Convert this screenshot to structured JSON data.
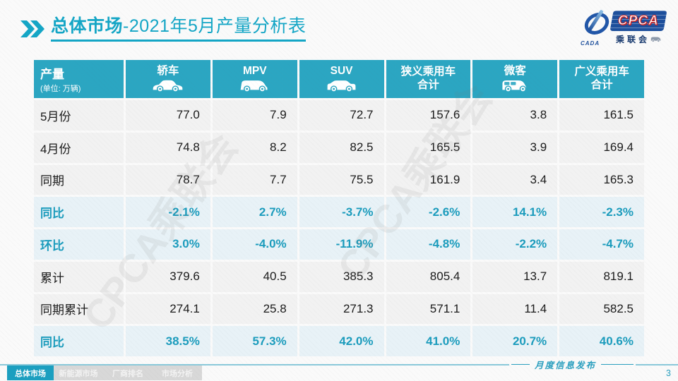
{
  "title": {
    "bold": "总体市场",
    "rest": "-2021年5月产量分析表"
  },
  "logo": {
    "cpca": "CPCA",
    "cada": "CADA",
    "sub": "乘联会"
  },
  "table": {
    "header": {
      "col0_title": "产量",
      "col0_sub": "(单位: 万辆)",
      "columns": [
        {
          "label": "轿车",
          "icon": "sedan-icon"
        },
        {
          "label": "MPV",
          "icon": "mpv-icon"
        },
        {
          "label": "SUV",
          "icon": "suv-icon"
        },
        {
          "label": "狭义乘用车",
          "label2": "合计"
        },
        {
          "label": "微客",
          "icon": "microvan-icon"
        },
        {
          "label": "广义乘用车",
          "label2": "合计"
        }
      ]
    },
    "rows": [
      {
        "label": "5月份",
        "type": "number",
        "values": [
          "77.0",
          "7.9",
          "72.7",
          "157.6",
          "3.8",
          "161.5"
        ]
      },
      {
        "label": "4月份",
        "type": "number",
        "values": [
          "74.8",
          "8.2",
          "82.5",
          "165.5",
          "3.9",
          "169.4"
        ]
      },
      {
        "label": "同期",
        "type": "number",
        "values": [
          "78.7",
          "7.7",
          "75.5",
          "161.9",
          "3.4",
          "165.3"
        ]
      },
      {
        "label": "同比",
        "type": "percent",
        "values": [
          "-2.1%",
          "2.7%",
          "-3.7%",
          "-2.6%",
          "14.1%",
          "-2.3%"
        ]
      },
      {
        "label": "环比",
        "type": "percent",
        "values": [
          "3.0%",
          "-4.0%",
          "-11.9%",
          "-4.8%",
          "-2.2%",
          "-4.7%"
        ]
      },
      {
        "label": "累计",
        "type": "number",
        "values": [
          "379.6",
          "40.5",
          "385.3",
          "805.4",
          "13.7",
          "819.1"
        ]
      },
      {
        "label": "同期累计",
        "type": "number",
        "values": [
          "274.1",
          "25.8",
          "271.3",
          "571.1",
          "11.4",
          "582.5"
        ]
      },
      {
        "label": "同比",
        "type": "percent",
        "values": [
          "38.5%",
          "57.3%",
          "42.0%",
          "41.0%",
          "20.7%",
          "40.6%"
        ]
      }
    ]
  },
  "watermark_text": "CPCA乘联会",
  "footer": {
    "tabs": [
      {
        "label": "总体市场",
        "active": true
      },
      {
        "label": "新能源市场",
        "active": false
      },
      {
        "label": "厂商排名",
        "active": false
      },
      {
        "label": "市场分析",
        "active": false
      }
    ],
    "release_text": "月度信息发布",
    "page_number": "3"
  },
  "colors": {
    "accent": "#14a6c6",
    "header_bg": "#2ba6c2",
    "percent_text": "#1b9cbd",
    "percent_row_bg": "#e8f2f7",
    "number_row_bg": "#f2f2f2",
    "tab_active_bg": "#1b9fc0",
    "tab_inactive_bg": "#d8d8d8",
    "logo_blue": "#1d4f9c",
    "logo_red": "#cc2222"
  }
}
